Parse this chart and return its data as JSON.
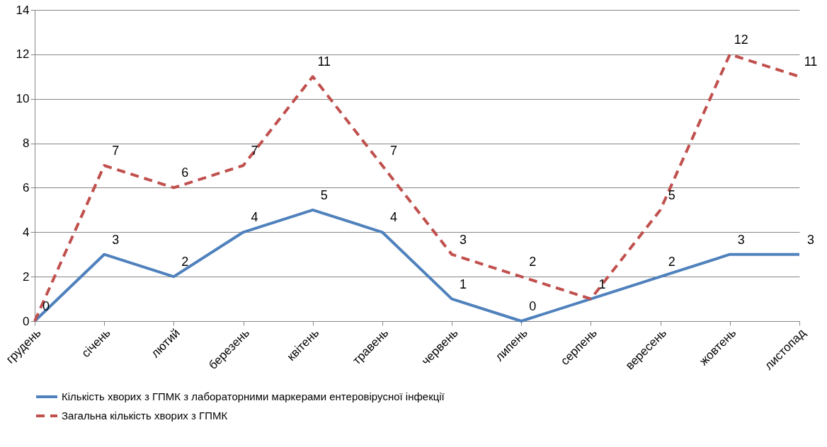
{
  "chart_data": {
    "type": "line",
    "categories": [
      "грудень",
      "січень",
      "лютий",
      "березень",
      "квітень",
      "травень",
      "червень",
      "липень",
      "серпень",
      "вересень",
      "жовтень",
      "листопад"
    ],
    "series": [
      {
        "name": "Кількість хворих з ГПМК з лабораторними маркерами ентеровірусної інфекції",
        "color": "#4f81bd",
        "line_style": "solid",
        "values": [
          0,
          3,
          2,
          4,
          5,
          4,
          1,
          0,
          1,
          2,
          3,
          3
        ],
        "value_labels": [
          "0",
          "3",
          "2",
          "4",
          "5",
          "4",
          "1",
          "0",
          "1",
          "2",
          "3",
          "3"
        ]
      },
      {
        "name": "Загальна кількість хворих з ГПМК",
        "color": "#c0504d",
        "line_style": "dashed",
        "values": [
          0,
          7,
          6,
          7,
          11,
          7,
          3,
          2,
          1,
          5,
          12,
          11
        ],
        "value_labels": [
          null,
          "7",
          "6",
          "7",
          "11",
          "7",
          "3",
          "2",
          null,
          "5",
          "12",
          "11"
        ]
      }
    ],
    "ylim": [
      0,
      14
    ],
    "yticks": [
      0,
      2,
      4,
      6,
      8,
      10,
      12,
      14
    ],
    "grid": "y",
    "legend": "bottom",
    "marker": "none"
  }
}
